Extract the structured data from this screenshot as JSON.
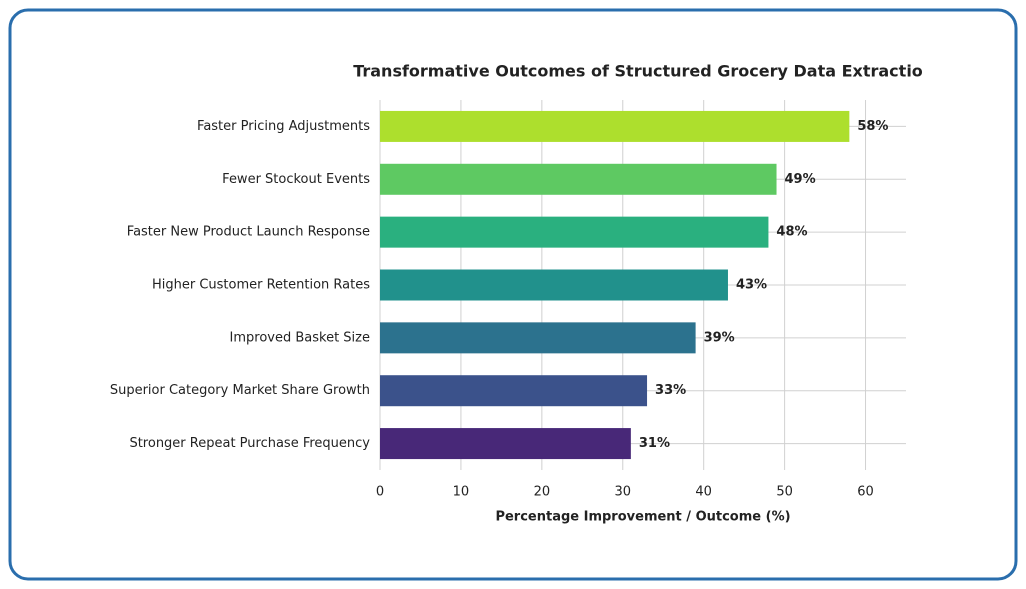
{
  "chart_data": {
    "type": "barh",
    "title": "Transformative Outcomes of Structured Grocery Data Extractio",
    "x_label": "Percentage Improvement / Outcome (%)",
    "categories": [
      "Faster Pricing Adjustments",
      "Fewer Stockout Events",
      "Faster New Product Launch Response",
      "Higher Customer Retention Rates",
      "Improved Basket Size",
      "Superior Category Market Share Growth",
      "Stronger Repeat Purchase Frequency"
    ],
    "values": [
      58,
      49,
      48,
      43,
      39,
      33,
      31
    ],
    "value_labels": [
      "58%",
      "49%",
      "48%",
      "43%",
      "39%",
      "33%",
      "31%"
    ],
    "colors": [
      "#addf2d",
      "#5ec962",
      "#2ab07f",
      "#21918c",
      "#2c728e",
      "#3b528b",
      "#482878"
    ],
    "xlim": [
      0,
      65
    ],
    "xticks": [
      0,
      10,
      20,
      30,
      40,
      50,
      60
    ],
    "grid": true
  }
}
